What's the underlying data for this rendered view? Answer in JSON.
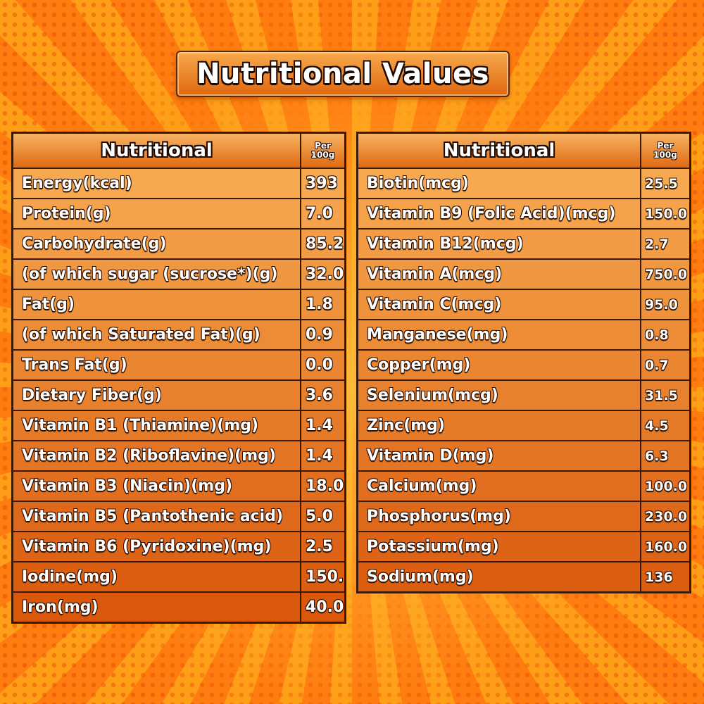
{
  "title": "Nutritional Values",
  "header": {
    "name_label": "Nutritional",
    "per_label_line1": "Per",
    "per_label_line2": "100g"
  },
  "left_table": [
    {
      "name": "Energy(kcal)",
      "value": "393"
    },
    {
      "name": "Protein(g)",
      "value": "7.0"
    },
    {
      "name": "Carbohydrate(g)",
      "value": "85.2"
    },
    {
      "name": "(of which sugar (sucrose*)(g)",
      "value": "32.0"
    },
    {
      "name": "Fat(g)",
      "value": "1.8"
    },
    {
      "name": "(of which Saturated Fat)(g)",
      "value": "0.9"
    },
    {
      "name": "Trans Fat(g)",
      "value": "0.0"
    },
    {
      "name": "Dietary Fiber(g)",
      "value": "3.6"
    },
    {
      "name": "Vitamin B1 (Thiamine)(mg)",
      "value": "1.4"
    },
    {
      "name": "Vitamin B2 (Riboflavine)(mg)",
      "value": "1.4"
    },
    {
      "name": "Vitamin B3 (Niacin)(mg)",
      "value": "18.0"
    },
    {
      "name": "Vitamin B5 (Pantothenic acid)",
      "value": "5.0"
    },
    {
      "name": "Vitamin B6 (Pyridoxine)(mg)",
      "value": "2.5"
    },
    {
      "name": "Iodine(mg)",
      "value": "150."
    },
    {
      "name": "Iron(mg)",
      "value": "40.0"
    }
  ],
  "right_table": [
    {
      "name": "Biotin(mcg)",
      "value": "25.5"
    },
    {
      "name": "Vitamin B9 (Folic Acid)(mcg)",
      "value": "150.0"
    },
    {
      "name": "Vitamin B12(mcg)",
      "value": "2.7"
    },
    {
      "name": "Vitamin A(mcg)",
      "value": "750.0"
    },
    {
      "name": "Vitamin C(mcg)",
      "value": "95.0"
    },
    {
      "name": "Manganese(mg)",
      "value": "0.8"
    },
    {
      "name": "Copper(mg)",
      "value": "0.7"
    },
    {
      "name": "Selenium(mcg)",
      "value": "31.5"
    },
    {
      "name": "Zinc(mg)",
      "value": "4.5"
    },
    {
      "name": "Vitamin D(mg)",
      "value": "6.3"
    },
    {
      "name": "Calcium(mg)",
      "value": "100.0"
    },
    {
      "name": "Phosphorus(mg)",
      "value": "230.0"
    },
    {
      "name": "Potassium(mg)",
      "value": "160.0"
    },
    {
      "name": "Sodium(mg)",
      "value": "136"
    }
  ],
  "colors": {
    "row_top": "#f6a94f",
    "row_bottom": "#d9580c",
    "border": "#3a1a05",
    "text": "#ffffff"
  }
}
